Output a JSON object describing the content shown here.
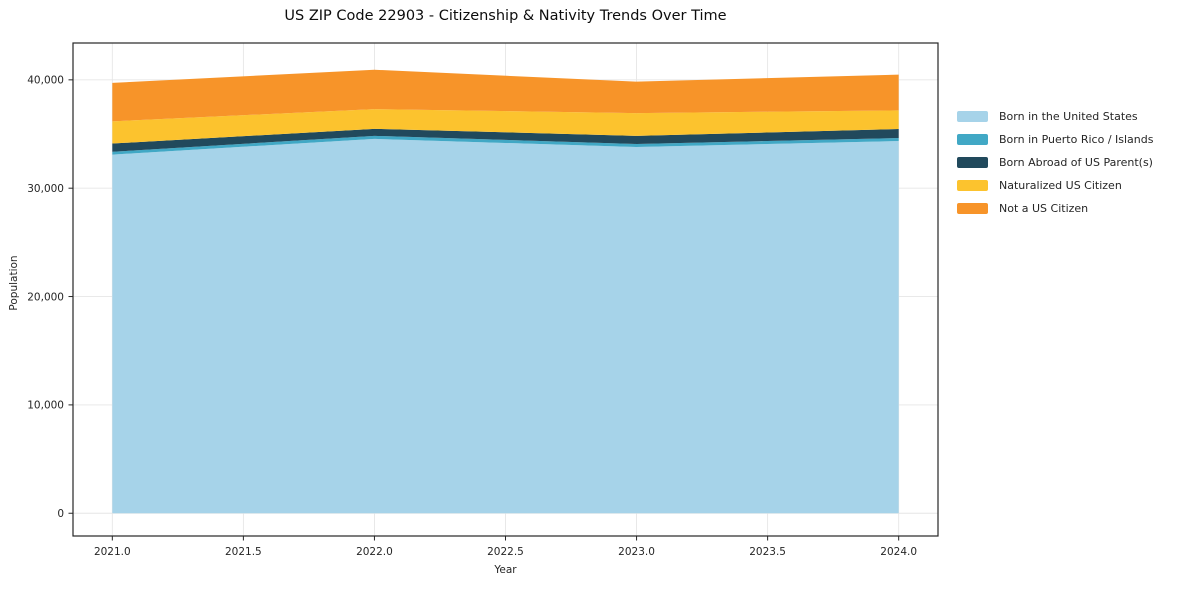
{
  "title": "US ZIP Code 22903 - Citizenship & Nativity Trends Over Time",
  "chart_data": {
    "type": "area",
    "stacked": true,
    "title": "US ZIP Code 22903 - Citizenship & Nativity Trends Over Time",
    "xlabel": "Year",
    "ylabel": "Population",
    "x": [
      2021,
      2022,
      2023,
      2024
    ],
    "series": [
      {
        "name": "Born in the United States",
        "color": "#a6d3e9",
        "values": [
          33100,
          34550,
          33800,
          34350
        ]
      },
      {
        "name": "Born in Puerto Rico / Islands",
        "color": "#41a8c5",
        "values": [
          260,
          280,
          280,
          280
        ]
      },
      {
        "name": "Born Abroad of US Parent(s)",
        "color": "#21495c",
        "values": [
          760,
          650,
          750,
          830
        ]
      },
      {
        "name": "Naturalized US Citizen",
        "color": "#fcc32e",
        "values": [
          2050,
          1820,
          2100,
          1720
        ]
      },
      {
        "name": "Not a US Citizen",
        "color": "#f79429",
        "values": [
          3550,
          3630,
          2900,
          3300
        ]
      }
    ],
    "x_ticks": [
      2021.0,
      2021.5,
      2022.0,
      2022.5,
      2023.0,
      2023.5,
      2024.0
    ],
    "x_tick_labels": [
      "2021.0",
      "2021.5",
      "2022.0",
      "2022.5",
      "2023.0",
      "2023.5",
      "2024.0"
    ],
    "y_ticks": [
      0,
      10000,
      20000,
      30000,
      40000
    ],
    "y_tick_labels": [
      "0",
      "10,000",
      "20,000",
      "30,000",
      "40,000"
    ],
    "xlim": [
      2020.85,
      2024.15
    ],
    "ylim": [
      -2100,
      43400
    ],
    "grid": true,
    "grid_color": "#e6e6e6",
    "spine_color": "#262626",
    "tick_text_color": "#262626",
    "legend_position": "right"
  }
}
